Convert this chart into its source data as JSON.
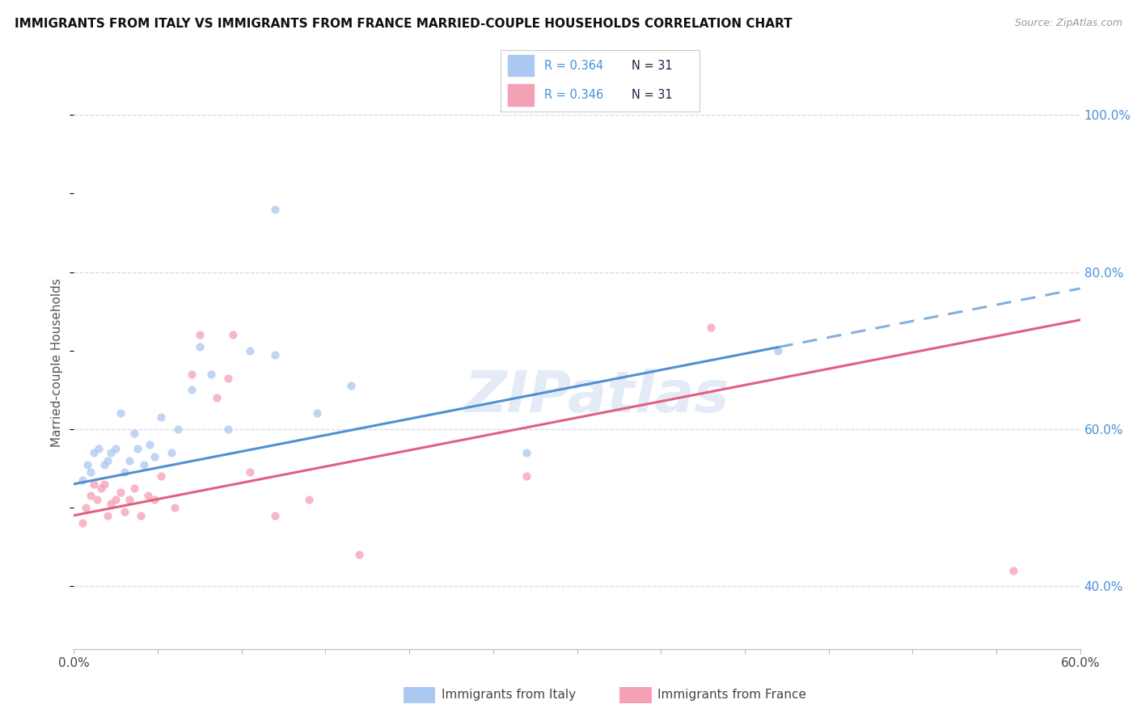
{
  "title": "IMMIGRANTS FROM ITALY VS IMMIGRANTS FROM FRANCE MARRIED-COUPLE HOUSEHOLDS CORRELATION CHART",
  "source": "Source: ZipAtlas.com",
  "ylabel": "Married-couple Households",
  "xlim": [
    0.0,
    0.6
  ],
  "ylim": [
    0.32,
    1.05
  ],
  "yticks_right": [
    0.4,
    0.6,
    0.8,
    1.0
  ],
  "ytick_labels_right": [
    "40.0%",
    "60.0%",
    "80.0%",
    "100.0%"
  ],
  "legend_italy_r": "0.364",
  "legend_italy_n": "31",
  "legend_france_r": "0.346",
  "legend_france_n": "31",
  "legend_label_italy": "Immigrants from Italy",
  "legend_label_france": "Immigrants from France",
  "color_italy": "#aac8f0",
  "color_france": "#f4a0b5",
  "color_line_italy": "#5090d0",
  "color_line_france": "#e06080",
  "color_r_text": "#4a90d9",
  "color_n_text": "#222244",
  "watermark": "ZIPatlas",
  "background_color": "#ffffff",
  "grid_color": "#d8d8e8",
  "italy_x": [
    0.005,
    0.008,
    0.01,
    0.012,
    0.015,
    0.018,
    0.02,
    0.022,
    0.025,
    0.028,
    0.03,
    0.033,
    0.036,
    0.038,
    0.042,
    0.045,
    0.048,
    0.052,
    0.058,
    0.062,
    0.07,
    0.075,
    0.082,
    0.092,
    0.105,
    0.12,
    0.145,
    0.165,
    0.27,
    0.12,
    0.42
  ],
  "italy_y": [
    0.535,
    0.555,
    0.545,
    0.57,
    0.575,
    0.555,
    0.56,
    0.57,
    0.575,
    0.62,
    0.545,
    0.56,
    0.595,
    0.575,
    0.555,
    0.58,
    0.565,
    0.615,
    0.57,
    0.6,
    0.65,
    0.705,
    0.67,
    0.6,
    0.7,
    0.695,
    0.62,
    0.655,
    0.57,
    0.88,
    0.7
  ],
  "france_x": [
    0.005,
    0.007,
    0.01,
    0.012,
    0.014,
    0.016,
    0.018,
    0.02,
    0.022,
    0.025,
    0.028,
    0.03,
    0.033,
    0.036,
    0.04,
    0.044,
    0.048,
    0.052,
    0.06,
    0.07,
    0.075,
    0.085,
    0.092,
    0.095,
    0.105,
    0.12,
    0.14,
    0.17,
    0.27,
    0.38,
    0.56
  ],
  "france_y": [
    0.48,
    0.5,
    0.515,
    0.53,
    0.51,
    0.525,
    0.53,
    0.49,
    0.505,
    0.51,
    0.52,
    0.495,
    0.51,
    0.525,
    0.49,
    0.515,
    0.51,
    0.54,
    0.5,
    0.67,
    0.72,
    0.64,
    0.665,
    0.72,
    0.545,
    0.49,
    0.51,
    0.44,
    0.54,
    0.73,
    0.42
  ],
  "dot_size": 55,
  "italy_line_x0": 0.0,
  "italy_line_y0": 0.53,
  "italy_line_slope": 0.415,
  "italy_line_solid_end": 0.42,
  "france_line_x0": 0.0,
  "france_line_y0": 0.49,
  "france_line_slope": 0.415
}
